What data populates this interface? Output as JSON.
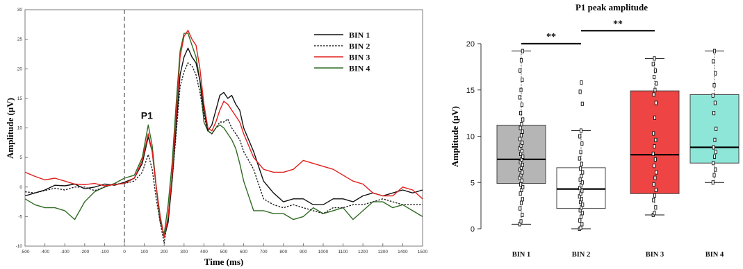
{
  "chart_data": [
    {
      "type": "line",
      "title": "",
      "xlabel": "Time (ms)",
      "ylabel": "Amplitude (µV)",
      "xlim": [
        -500,
        1500
      ],
      "ylim": [
        -10,
        30
      ],
      "x_ticks": [
        -500,
        -400,
        -300,
        -200,
        -100,
        0,
        100,
        200,
        300,
        400,
        500,
        600,
        700,
        800,
        900,
        1000,
        1100,
        1200,
        1300,
        1400,
        1500
      ],
      "y_ticks": [
        -10,
        -5,
        0,
        5,
        10,
        15,
        20,
        25,
        30
      ],
      "grid": false,
      "legend_position": "top-right",
      "annotation": "P1",
      "stimulus_onset_ms": 0,
      "series": [
        {
          "name": "BIN 1",
          "color": "#111111",
          "style": "solid",
          "x": [
            -500,
            -450,
            -400,
            -350,
            -300,
            -250,
            -200,
            -150,
            -100,
            -50,
            0,
            50,
            90,
            120,
            140,
            160,
            180,
            200,
            220,
            240,
            260,
            280,
            300,
            320,
            340,
            360,
            380,
            400,
            420,
            440,
            460,
            480,
            500,
            520,
            540,
            560,
            580,
            600,
            650,
            700,
            750,
            800,
            850,
            900,
            950,
            1000,
            1050,
            1100,
            1150,
            1200,
            1250,
            1300,
            1350,
            1400,
            1450,
            1500
          ],
          "values": [
            -1.5,
            -1,
            -0.5,
            0.3,
            0.2,
            0.5,
            -0.3,
            0,
            0.5,
            0.3,
            0.8,
            1.5,
            4,
            8.5,
            6,
            0,
            -5,
            -8.5,
            -6,
            1,
            10,
            19,
            22,
            23.5,
            22,
            21,
            18,
            13,
            9.5,
            10.5,
            13,
            15.5,
            16,
            15,
            15.5,
            14,
            13,
            10,
            6,
            1,
            -1,
            -2.5,
            -2,
            -2,
            -3,
            -3,
            -2,
            -2,
            -2.5,
            -1.5,
            -1,
            -1.5,
            -1,
            -0.5,
            -1,
            -0.5
          ]
        },
        {
          "name": "BIN 2",
          "color": "#222222",
          "style": "dashed",
          "x": [
            -500,
            -450,
            -400,
            -350,
            -300,
            -250,
            -200,
            -150,
            -100,
            -50,
            0,
            50,
            90,
            120,
            140,
            160,
            180,
            200,
            220,
            240,
            260,
            280,
            300,
            320,
            340,
            360,
            380,
            400,
            420,
            440,
            460,
            480,
            500,
            520,
            540,
            560,
            580,
            600,
            650,
            700,
            750,
            800,
            850,
            900,
            950,
            1000,
            1050,
            1100,
            1150,
            1200,
            1250,
            1300,
            1350,
            1400,
            1450,
            1500
          ],
          "values": [
            -0.8,
            -1,
            -0.6,
            -0.2,
            -0.5,
            0,
            0,
            -0.6,
            0,
            0.5,
            0.6,
            1,
            2.5,
            5.5,
            3,
            -2,
            -6,
            -9.5,
            -5,
            1,
            9,
            17,
            19.5,
            21,
            20.5,
            19,
            16,
            12,
            9.5,
            9,
            10,
            11,
            11,
            11.5,
            10,
            9,
            8,
            6,
            3,
            -2,
            -3,
            -3.5,
            -3,
            -3.5,
            -4,
            -4.5,
            -3.5,
            -3.5,
            -3,
            -3,
            -2.5,
            -2,
            -2.5,
            -3,
            -3,
            -3
          ]
        },
        {
          "name": "BIN 3",
          "color": "#e0201c",
          "style": "solid",
          "x": [
            -500,
            -450,
            -400,
            -350,
            -300,
            -250,
            -200,
            -150,
            -100,
            -50,
            0,
            50,
            90,
            120,
            140,
            160,
            180,
            200,
            220,
            240,
            260,
            280,
            300,
            320,
            340,
            360,
            380,
            400,
            420,
            440,
            460,
            480,
            500,
            520,
            540,
            560,
            580,
            600,
            650,
            700,
            750,
            800,
            850,
            900,
            950,
            1000,
            1050,
            1100,
            1150,
            1200,
            1250,
            1300,
            1350,
            1400,
            1450,
            1500
          ],
          "values": [
            2.5,
            1.8,
            1.2,
            1.5,
            1,
            0.5,
            0.4,
            0.6,
            0.2,
            0.4,
            0.6,
            1.5,
            4.5,
            9,
            6,
            0,
            -5,
            -8.5,
            -5,
            2,
            12,
            22,
            25.5,
            26.5,
            25,
            24,
            20,
            14,
            10,
            9.5,
            11,
            13,
            14.5,
            14,
            13,
            12,
            11,
            9,
            5,
            3,
            2.5,
            2.5,
            3,
            4.5,
            4,
            3.5,
            3,
            2,
            1,
            0.5,
            -1,
            -1.5,
            -1.5,
            0,
            -0.5,
            -2
          ]
        },
        {
          "name": "BIN 4",
          "color": "#2f6b22",
          "style": "solid",
          "x": [
            -500,
            -450,
            -400,
            -350,
            -300,
            -250,
            -200,
            -150,
            -100,
            -50,
            0,
            50,
            90,
            120,
            140,
            160,
            180,
            200,
            220,
            240,
            260,
            280,
            300,
            320,
            340,
            360,
            380,
            400,
            420,
            440,
            460,
            480,
            500,
            520,
            540,
            560,
            580,
            600,
            650,
            700,
            750,
            800,
            850,
            900,
            950,
            1000,
            1050,
            1100,
            1150,
            1200,
            1250,
            1300,
            1350,
            1400,
            1450,
            1500
          ],
          "values": [
            -2,
            -3,
            -3.5,
            -3.5,
            -4,
            -5.5,
            -2.5,
            -0.8,
            0,
            0.6,
            1.5,
            2,
            5,
            10.5,
            7,
            0,
            -6,
            -8,
            -3,
            4,
            14,
            23,
            26,
            26,
            24,
            22,
            18,
            11,
            9.5,
            9,
            10,
            10.5,
            10,
            9,
            8,
            6.5,
            4,
            1,
            -4,
            -4,
            -4.5,
            -4.5,
            -5.5,
            -5,
            -3.5,
            -4.5,
            -4,
            -3.5,
            -5.5,
            -4,
            -2.5,
            -2.5,
            -3.5,
            -3,
            -4,
            -5
          ]
        }
      ]
    },
    {
      "type": "box",
      "title": "P1 peak amplitude",
      "xlabel": "",
      "ylabel": "Amplitude (µV)",
      "ylim": [
        0,
        20
      ],
      "y_ticks": [
        0,
        5,
        10,
        15,
        20
      ],
      "categories": [
        "BIN 1",
        "BIN 2",
        "BIN 3",
        "BIN 4"
      ],
      "boxes": [
        {
          "name": "BIN 1",
          "color": "#b5b5b5",
          "q1": 4.9,
          "median": 7.5,
          "q3": 11.2,
          "whisker_low": 0.5,
          "whisker_high": 19.2,
          "points": [
            0.5,
            0.8,
            1.5,
            2.2,
            2.8,
            3.2,
            3.8,
            4.2,
            4.5,
            4.8,
            5.2,
            5.5,
            5.8,
            6.1,
            6.4,
            6.6,
            6.9,
            7.2,
            7.5,
            7.8,
            8.1,
            8.4,
            8.7,
            9.0,
            9.3,
            9.7,
            10.1,
            10.5,
            10.9,
            11.3,
            11.8,
            12.5,
            13.4,
            14.2,
            15.0,
            16.1,
            17.1,
            18.2,
            19.2
          ]
        },
        {
          "name": "BIN 2",
          "color": "#ffffff",
          "q1": 2.2,
          "median": 4.3,
          "q3": 6.6,
          "whisker_low": 0.0,
          "whisker_high": 10.6,
          "points": [
            0.0,
            0.1,
            0.5,
            0.9,
            1.3,
            1.7,
            2.0,
            2.3,
            2.6,
            2.9,
            3.2,
            3.5,
            3.8,
            4.1,
            4.4,
            4.7,
            5.0,
            5.3,
            5.7,
            6.1,
            6.5,
            7.0,
            7.6,
            8.3,
            9.2,
            10.0,
            10.6,
            13.5,
            14.8,
            15.8
          ]
        },
        {
          "name": "BIN 3",
          "color": "#ef4444",
          "q1": 3.8,
          "median": 8.0,
          "q3": 14.9,
          "whisker_low": 1.5,
          "whisker_high": 18.4,
          "points": [
            1.5,
            1.7,
            2.3,
            3.1,
            3.6,
            4.2,
            4.8,
            5.5,
            6.1,
            6.8,
            7.5,
            8.1,
            8.9,
            9.6,
            10.3,
            12.0,
            13.6,
            14.5,
            15.0,
            15.7,
            16.4,
            17.1,
            17.8,
            18.4
          ]
        },
        {
          "name": "BIN 4",
          "color": "#8ee6d8",
          "q1": 7.1,
          "median": 8.8,
          "q3": 14.5,
          "whisker_low": 5.0,
          "whisker_high": 19.2,
          "points": [
            5.0,
            5.8,
            6.4,
            7.1,
            7.8,
            8.3,
            8.8,
            9.6,
            10.8,
            12.5,
            13.6,
            14.4,
            15.5,
            16.8,
            18.1,
            19.2
          ]
        }
      ],
      "significance": [
        {
          "label": "**",
          "from": "BIN 1",
          "to": "BIN 2",
          "y": 20.0
        },
        {
          "label": "**",
          "from": "BIN 2",
          "to": "BIN 3",
          "y": 21.4
        }
      ]
    }
  ]
}
